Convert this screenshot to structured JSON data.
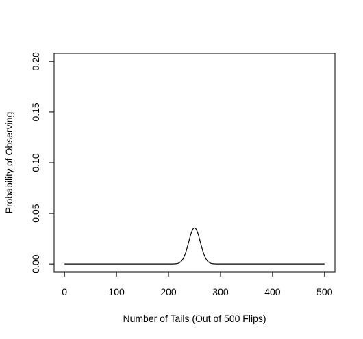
{
  "chart_data": {
    "type": "line",
    "title": "",
    "xlabel": "Number of Tails (Out of 500 Flips)",
    "ylabel": "Probability of Observing",
    "xlim": [
      -20,
      520
    ],
    "ylim": [
      -0.008,
      0.208
    ],
    "x_ticks": [
      0,
      100,
      200,
      300,
      400,
      500
    ],
    "x_tick_labels": [
      "0",
      "100",
      "200",
      "300",
      "400",
      "500"
    ],
    "y_ticks": [
      0.0,
      0.05,
      0.1,
      0.15,
      0.2
    ],
    "y_tick_labels": [
      "0.00",
      "0.05",
      "0.10",
      "0.15",
      "0.20"
    ],
    "grid": false,
    "series": [
      {
        "distribution": "binomial",
        "n": 500,
        "p": 0.5,
        "x_range": [
          0,
          500
        ],
        "color": "#000000",
        "points": [
          [
            0,
            0.0
          ],
          [
            200,
            0.0
          ],
          [
            210,
            0.0002
          ],
          [
            215,
            0.0006
          ],
          [
            220,
            0.0015
          ],
          [
            225,
            0.0034
          ],
          [
            230,
            0.0066
          ],
          [
            235,
            0.0113
          ],
          [
            240,
            0.0176
          ],
          [
            245,
            0.0284
          ],
          [
            250,
            0.0357
          ],
          [
            255,
            0.0284
          ],
          [
            260,
            0.0176
          ],
          [
            265,
            0.0113
          ],
          [
            270,
            0.0066
          ],
          [
            275,
            0.0034
          ],
          [
            280,
            0.0015
          ],
          [
            285,
            0.0006
          ],
          [
            290,
            0.0002
          ],
          [
            300,
            0.0
          ],
          [
            500,
            0.0
          ]
        ]
      }
    ],
    "line_color": "#000000"
  }
}
